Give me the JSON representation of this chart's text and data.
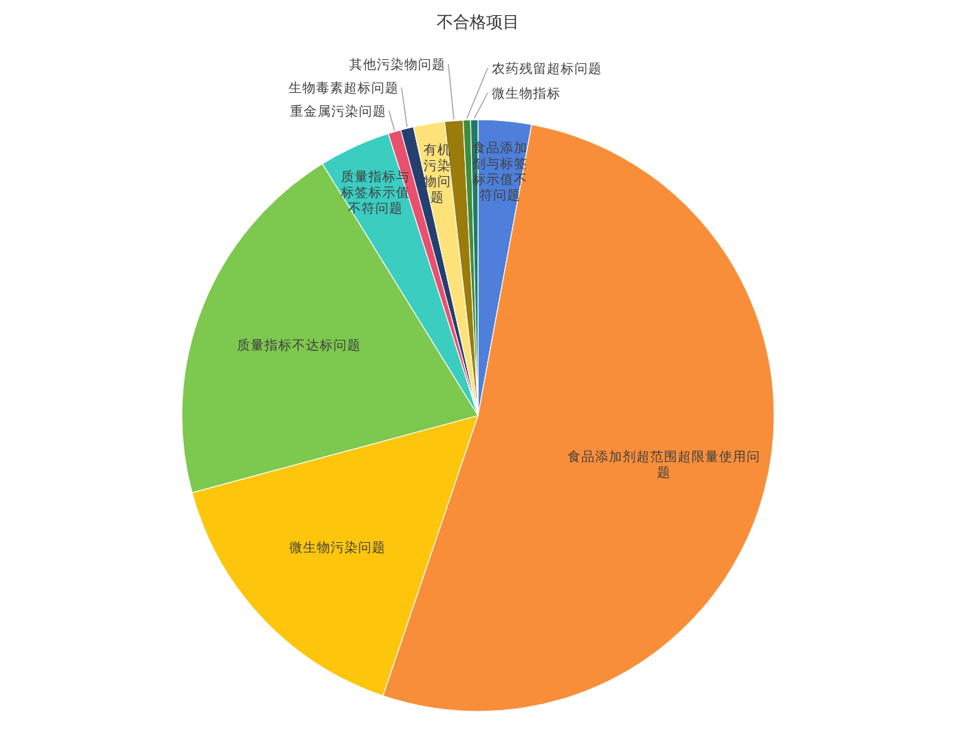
{
  "chart_data": {
    "type": "pie",
    "title": "不合格项目",
    "categories": [
      "食品添加剂与标签标示值不符问题",
      "食品添加剂超范围超限量使用问题",
      "微生物污染问题",
      "质量指标不达标问题",
      "质量指标与标签标示值不符问题",
      "重金属污染问题",
      "生物毒素超标问题",
      "有机污染物问题",
      "其他污染物问题",
      "农药残留超标问题",
      "微生物指标"
    ],
    "values": [
      2.9,
      52.3,
      15.6,
      20.4,
      3.9,
      0.7,
      0.7,
      1.7,
      1.0,
      0.4,
      0.4
    ],
    "colors": [
      "#4d7fdb",
      "#f98e3a",
      "#fdc60c",
      "#7dc84e",
      "#3acdc0",
      "#e9506e",
      "#24406e",
      "#fde27a",
      "#9a7c0a",
      "#3e8c3e",
      "#1f7a6a"
    ]
  }
}
